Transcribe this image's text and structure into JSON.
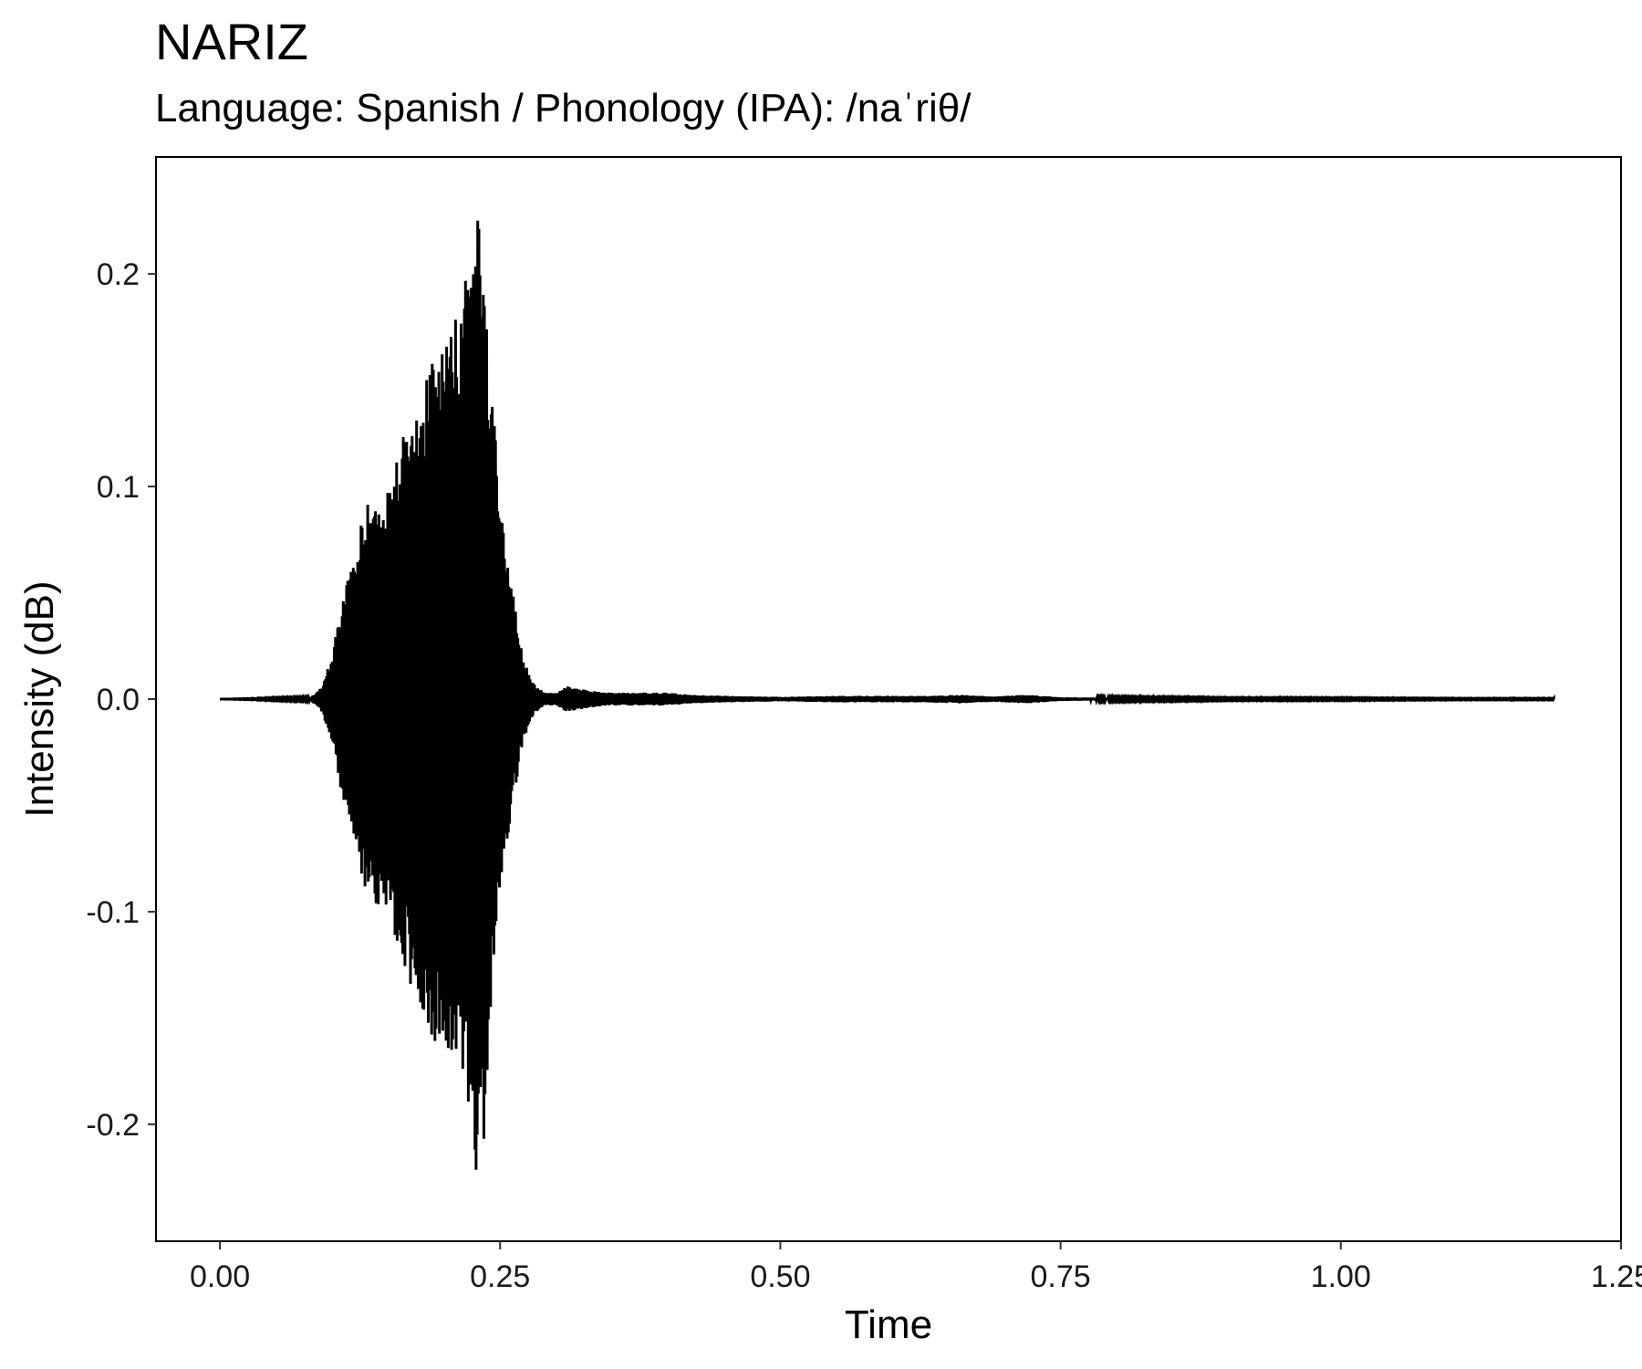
{
  "chart_data": {
    "type": "line",
    "title": "NARIZ",
    "subtitle": "Language: Spanish / Phonology (IPA): /naˈriθ/",
    "xlabel": "Time",
    "ylabel": "Intensity (dB)",
    "xlim": [
      -0.057,
      1.25
    ],
    "ylim": [
      -0.255,
      0.255
    ],
    "x_ticks": [
      0.0,
      0.25,
      0.5,
      0.75,
      1.0,
      1.25
    ],
    "x_tick_labels": [
      "0.00",
      "0.25",
      "0.50",
      "0.75",
      "1.00",
      "1.25"
    ],
    "y_ticks": [
      -0.2,
      -0.1,
      0.0,
      0.1,
      0.2
    ],
    "y_tick_labels": [
      "-0.2",
      "-0.1",
      "0.0",
      "0.1",
      "0.2"
    ],
    "grid": false,
    "line_color": "#000000",
    "series": [
      {
        "x": [
          0.0,
          0.08,
          0.09,
          0.1,
          0.11,
          0.12,
          0.13,
          0.14,
          0.15,
          0.16,
          0.17,
          0.18,
          0.19,
          0.2,
          0.21,
          0.22,
          0.225,
          0.23,
          0.235,
          0.24,
          0.25,
          0.26,
          0.27,
          0.28,
          0.29,
          0.3,
          0.31,
          0.32,
          0.33,
          0.35,
          0.37,
          0.4,
          0.42,
          0.45,
          0.5,
          0.55,
          0.6,
          0.63,
          0.66,
          0.69,
          0.72,
          0.75,
          0.8,
          0.9,
          1.0,
          1.1,
          1.19
        ],
        "envelope": [
          0.0,
          0.0005,
          0.005,
          0.02,
          0.05,
          0.07,
          0.09,
          0.1,
          0.1,
          0.12,
          0.14,
          0.15,
          0.16,
          0.17,
          0.18,
          0.2,
          0.21,
          0.23,
          0.22,
          0.17,
          0.09,
          0.055,
          0.02,
          0.007,
          0.003,
          0.003,
          0.006,
          0.005,
          0.004,
          0.003,
          0.003,
          0.003,
          0.002,
          0.0015,
          0.001,
          0.0015,
          0.0015,
          0.0015,
          0.002,
          0.0012,
          0.002,
          0.0008,
          0.0005,
          0.0003,
          0.0003,
          0.0002,
          0.0002
        ]
      }
    ]
  }
}
